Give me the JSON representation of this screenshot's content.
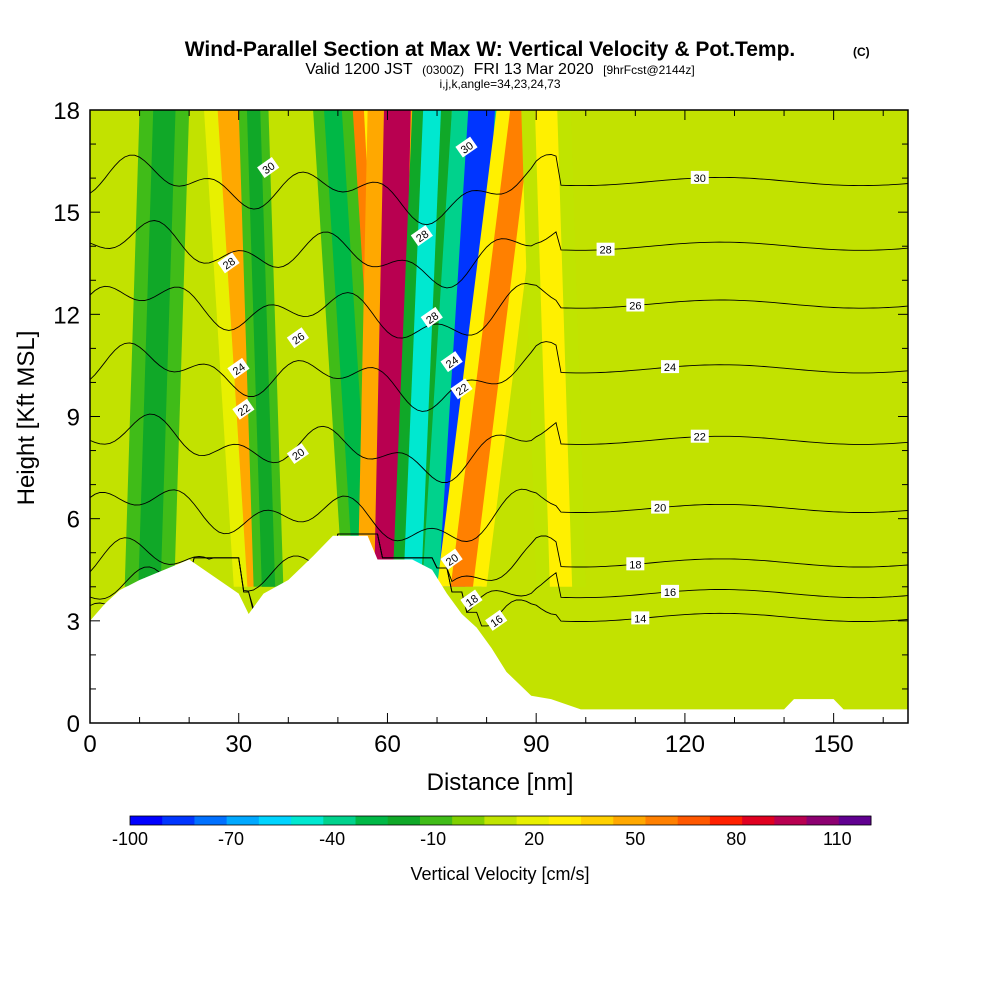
{
  "chart_data": {
    "type": "heatmap",
    "title": "Wind-Parallel Section at Max W: Vertical Velocity & Pot.Temp.",
    "title_mark": "(C)",
    "subtitle_parts": [
      "Valid 1200 JST",
      "(0300Z)",
      "FRI 13 Mar 2020",
      "[9hrFcst@2144z]"
    ],
    "subtitle2": "i,j,k,angle=34,23,24,73",
    "xlabel": "Distance [nm]",
    "ylabel": "Height [Kft MSL]",
    "xlim": [
      0,
      165
    ],
    "ylim": [
      0,
      18
    ],
    "x_ticks": [
      0,
      30,
      60,
      90,
      120,
      150
    ],
    "y_ticks": [
      0,
      3,
      6,
      9,
      12,
      15,
      18
    ],
    "colorbar": {
      "label": "Vertical Velocity [cm/s]",
      "range": [
        -100,
        120
      ],
      "tick_values": [
        -100,
        -70,
        -40,
        -10,
        20,
        50,
        80,
        110
      ],
      "colors": [
        "#0000ff",
        "#0035ff",
        "#0070ff",
        "#00a8ff",
        "#00d4ff",
        "#00e8d0",
        "#00d28c",
        "#00b846",
        "#10a828",
        "#40bc18",
        "#80d000",
        "#c0e400",
        "#e8f000",
        "#fff000",
        "#ffd000",
        "#ffa800",
        "#ff8000",
        "#ff5800",
        "#ff2000",
        "#e00020",
        "#b80050",
        "#8c0070",
        "#600090"
      ]
    },
    "velocity_bands": [
      {
        "x_top": 28,
        "x_bottom": 34,
        "value": 50,
        "width": 5
      },
      {
        "x_top": 33,
        "x_bottom": 36,
        "value": -20,
        "width": 3
      },
      {
        "x_top": 53,
        "x_bottom": 58,
        "value": 55,
        "width": 5
      },
      {
        "x_top": 49,
        "x_bottom": 55,
        "value": -30,
        "width": 4
      },
      {
        "x_top": 62,
        "x_bottom": 60,
        "value": 100,
        "width": 6
      },
      {
        "x_top": 69,
        "x_bottom": 65,
        "value": -50,
        "width": 4
      },
      {
        "x_top": 79,
        "x_bottom": 73,
        "value": -90,
        "width": 6
      },
      {
        "x_top": 87,
        "x_bottom": 75,
        "value": 60,
        "width": 5
      },
      {
        "x_top": 15,
        "x_bottom": 12,
        "value": -20,
        "width": 5
      },
      {
        "x_top": 92,
        "x_bottom": 95,
        "value": 25,
        "width": 5
      }
    ],
    "terrain": [
      [
        0,
        3
      ],
      [
        3,
        3.5
      ],
      [
        6,
        3.9
      ],
      [
        10,
        4.2
      ],
      [
        20,
        4.8
      ],
      [
        30,
        3.8
      ],
      [
        32,
        3.2
      ],
      [
        35,
        3.8
      ],
      [
        40,
        4.2
      ],
      [
        45,
        4.9
      ],
      [
        49,
        5.5
      ],
      [
        56,
        5.5
      ],
      [
        58,
        4.8
      ],
      [
        65,
        4.8
      ],
      [
        69,
        4.5
      ],
      [
        72,
        3.8
      ],
      [
        75,
        3.2
      ],
      [
        78,
        2.8
      ],
      [
        81,
        2.2
      ],
      [
        84,
        1.5
      ],
      [
        89,
        0.8
      ],
      [
        93,
        0.7
      ],
      [
        99,
        0.4
      ],
      [
        140,
        0.4
      ],
      [
        142,
        0.7
      ],
      [
        150,
        0.7
      ],
      [
        152,
        0.4
      ],
      [
        165,
        0.4
      ]
    ],
    "contour_levels": [
      {
        "value": 14,
        "label": "14",
        "base_height": 3.1,
        "lx": 111
      },
      {
        "value": 16,
        "label": "16",
        "base_height": 3.8,
        "lx": 117
      },
      {
        "value": 18,
        "label": "18",
        "base_height": 4.7,
        "lx": 110
      },
      {
        "value": 20,
        "label": "20",
        "base_height": 6.3,
        "lx": 115
      },
      {
        "value": 22,
        "label": "22",
        "base_height": 8.3,
        "lx": 123
      },
      {
        "value": 24,
        "label": "24",
        "base_height": 10.4,
        "lx": 117
      },
      {
        "value": 26,
        "label": "26",
        "base_height": 12.3,
        "lx": 110
      },
      {
        "value": 28,
        "label": "28",
        "base_height": 14.0,
        "lx": 104
      },
      {
        "value": 30,
        "label": "30",
        "base_height": 15.9,
        "lx": 123
      }
    ],
    "extra_labels": [
      {
        "text": "30",
        "x": 36,
        "y": 16.3
      },
      {
        "text": "30",
        "x": 76,
        "y": 16.9
      },
      {
        "text": "28",
        "x": 28,
        "y": 13.5
      },
      {
        "text": "28",
        "x": 67,
        "y": 14.3
      },
      {
        "text": "28",
        "x": 69,
        "y": 11.9
      },
      {
        "text": "26",
        "x": 42,
        "y": 11.3
      },
      {
        "text": "24",
        "x": 30,
        "y": 10.4
      },
      {
        "text": "24",
        "x": 73,
        "y": 10.6
      },
      {
        "text": "22",
        "x": 31,
        "y": 9.2
      },
      {
        "text": "22",
        "x": 75,
        "y": 9.8
      },
      {
        "text": "20",
        "x": 42,
        "y": 7.9
      },
      {
        "text": "20",
        "x": 73,
        "y": 4.8
      },
      {
        "text": "18",
        "x": 77,
        "y": 3.6
      },
      {
        "text": "16",
        "x": 82,
        "y": 3.0
      }
    ]
  }
}
